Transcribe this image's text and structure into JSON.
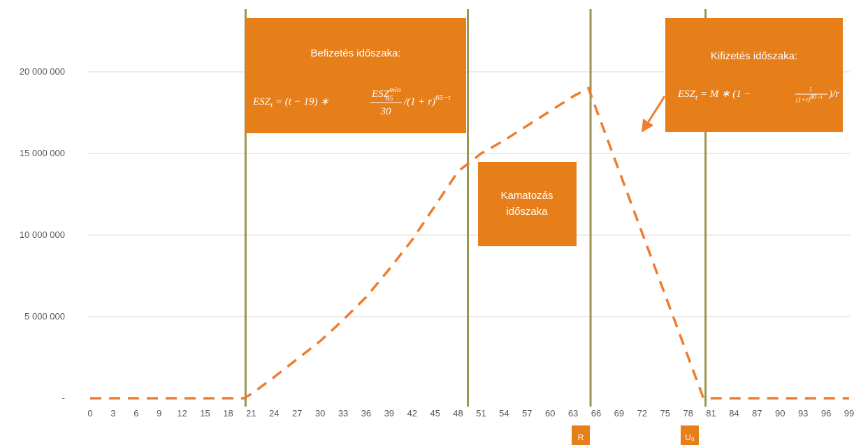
{
  "chart_data": {
    "type": "line",
    "ylim": [
      0,
      22000000
    ],
    "xlim": [
      0,
      99
    ],
    "y_ticks": [
      {
        "value": 0,
        "label": "-"
      },
      {
        "value": 5000000,
        "label": "5 000 000"
      },
      {
        "value": 10000000,
        "label": "10 000 000"
      },
      {
        "value": 15000000,
        "label": "15 000 000"
      },
      {
        "value": 20000000,
        "label": "20 000 000"
      }
    ],
    "x_ticks": [
      "0",
      "3",
      "6",
      "9",
      "12",
      "15",
      "18",
      "21",
      "24",
      "27",
      "30",
      "33",
      "36",
      "39",
      "42",
      "45",
      "48",
      "51",
      "54",
      "57",
      "60",
      "63",
      "66",
      "69",
      "72",
      "75",
      "78",
      "81",
      "84",
      "87",
      "90",
      "93",
      "96",
      "99"
    ],
    "grid": "horizontal",
    "series": [
      {
        "style": "dashed",
        "color": "#ED7D31",
        "points": [
          {
            "x": 0,
            "y": 0
          },
          {
            "x": 20,
            "y": 0
          },
          {
            "x": 21,
            "y": 250000
          },
          {
            "x": 24,
            "y": 1300000
          },
          {
            "x": 27,
            "y": 2400000
          },
          {
            "x": 30,
            "y": 3500000
          },
          {
            "x": 33,
            "y": 4800000
          },
          {
            "x": 36,
            "y": 6200000
          },
          {
            "x": 39,
            "y": 7900000
          },
          {
            "x": 42,
            "y": 9700000
          },
          {
            "x": 45,
            "y": 11800000
          },
          {
            "x": 48,
            "y": 13900000
          },
          {
            "x": 51,
            "y": 15000000
          },
          {
            "x": 54,
            "y": 15800000
          },
          {
            "x": 57,
            "y": 16700000
          },
          {
            "x": 60,
            "y": 17600000
          },
          {
            "x": 63,
            "y": 18500000
          },
          {
            "x": 65,
            "y": 19000000
          },
          {
            "x": 80,
            "y": 0
          },
          {
            "x": 99,
            "y": 0
          }
        ]
      }
    ],
    "vertical_lines": [
      20,
      49,
      65,
      80
    ],
    "colors": {
      "accent": "#ED7D31",
      "box": "#E67E1A",
      "vline": "#9C9451",
      "grid": "#D9D9D9"
    },
    "annotations": {
      "payin": {
        "title": "Befizetés időszaka:",
        "formula_lhs": "ESZ",
        "formula_lhs_sub": "t",
        "formula_mid": " = (t − 19) ∗ ",
        "frac_num": "ESZ",
        "frac_num_sub": "65",
        "frac_num_sup": "min",
        "frac_den": "30",
        "formula_tail": "/(1 + r)",
        "formula_tail_sup": "65−t"
      },
      "interest": {
        "line1": "Kamatozás",
        "line2": "időszaka"
      },
      "payout": {
        "title": "Kifizetés időszaka:",
        "formula_lhs": "ESZ",
        "formula_lhs_sub": "t",
        "formula_mid": " = M ∗ (1 − ",
        "frac_num": "1",
        "frac_den": "(1+r)",
        "frac_den_sup": "80−t",
        "formula_tail": ")/r"
      },
      "marker_r": "R",
      "marker_u": "U₀"
    }
  }
}
